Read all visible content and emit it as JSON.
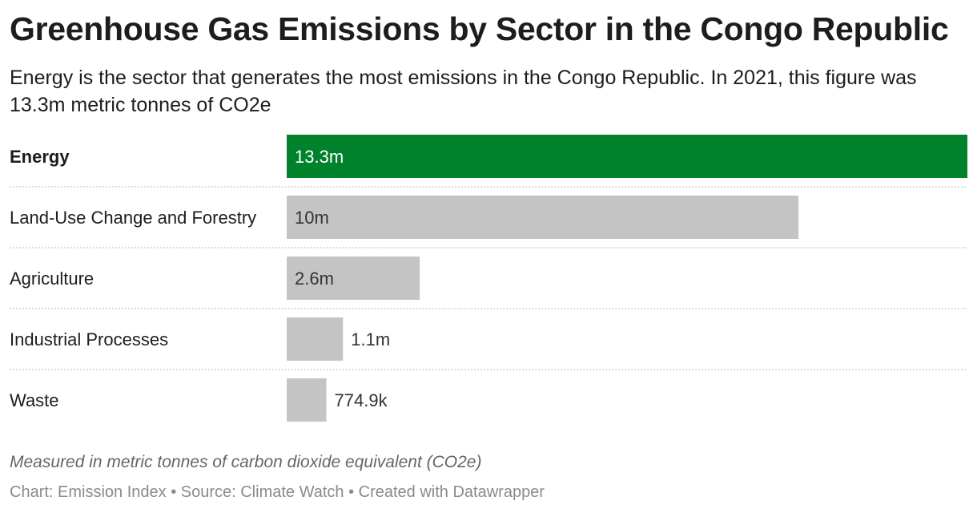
{
  "title": "Greenhouse Gas Emissions by Sector in the Congo Republic",
  "subtitle": "Energy is the sector that generates the most emissions in the Congo Republic. In 2021, this figure was 13.3m metric tonnes of CO2e",
  "notes": "Measured in metric tonnes of carbon dioxide equivalent (CO2e)",
  "footer": "Chart: Emission Index • Source: Climate Watch • Created with Datawrapper",
  "colors": {
    "highlight": "#00822c",
    "default": "#c4c4c4",
    "separator": "#d0d0d0",
    "label_on_dark": "#ffffff",
    "label_on_light": "#333333"
  },
  "chart_data": {
    "type": "bar",
    "orientation": "horizontal",
    "categories": [
      "Energy",
      "Land-Use Change and Forestry",
      "Agriculture",
      "Industrial Processes",
      "Waste"
    ],
    "values": [
      13300000,
      10000000,
      2600000,
      1100000,
      774900
    ],
    "value_labels": [
      "13.3m",
      "10m",
      "2.6m",
      "1.1m",
      "774.9k"
    ],
    "highlighted_category": "Energy",
    "xlim": [
      0,
      13300000
    ],
    "grid": false
  }
}
